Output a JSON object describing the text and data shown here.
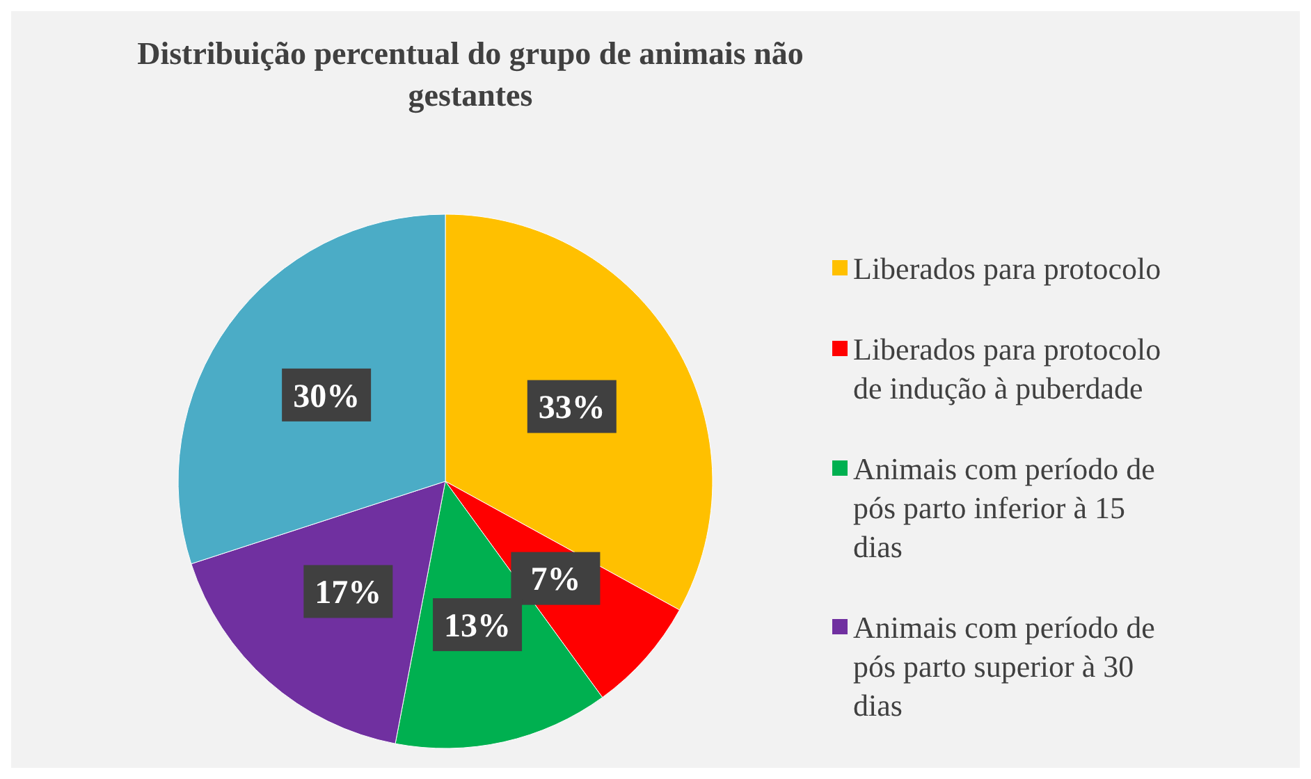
{
  "chart_data": {
    "type": "pie",
    "title": "Distribuição percentual do grupo de  animais não gestantes",
    "categories": [
      "Liberados para protocolo",
      "Liberados para protocolo de indução à puberdade",
      "Animais com período de pós parto inferior à 15 dias",
      "Animais com período de pós parto superior à 30 dias",
      null
    ],
    "values": [
      33,
      7,
      13,
      17,
      30
    ],
    "colors": [
      "#ffc000",
      "#ff0000",
      "#00b050",
      "#7030a0",
      "#4bacc6"
    ],
    "value_labels": [
      "33%",
      "7%",
      "13%",
      "17%",
      "30%"
    ],
    "legend": "right"
  }
}
